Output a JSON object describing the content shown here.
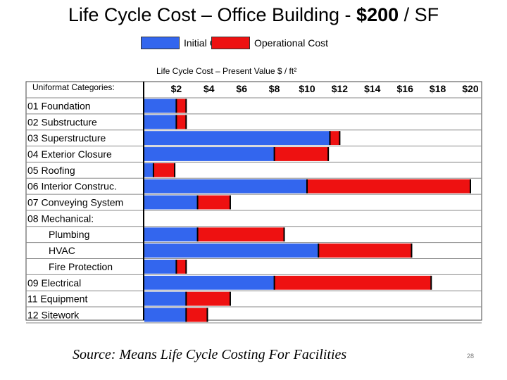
{
  "slide": {
    "title_prefix": "Life Cycle Cost – Office Building - ",
    "title_bold": "$200",
    "title_suffix": " / SF",
    "source": "Source: Means Life Cycle Costing For Facilities",
    "page_number": "28"
  },
  "chart_data": {
    "type": "bar",
    "stacked": true,
    "orientation": "horizontal",
    "title": "Life Cycle Cost – Present Value $ / ft²",
    "axis_header": "Uniformat Categories:",
    "xlim": [
      0,
      21
    ],
    "ticks": [
      2,
      4,
      6,
      8,
      10,
      12,
      14,
      16,
      18,
      20
    ],
    "tick_labels": [
      "$2",
      "$4",
      "$6",
      "$8",
      "$10",
      "$12",
      "$14",
      "$16",
      "$18",
      "$20"
    ],
    "categories": [
      {
        "label": "01 Foundation",
        "indent": false
      },
      {
        "label": "02 Substructure",
        "indent": false
      },
      {
        "label": "03 Superstructure",
        "indent": false
      },
      {
        "label": "04 Exterior Closure",
        "indent": false
      },
      {
        "label": "05 Roofing",
        "indent": false
      },
      {
        "label": "06 Interior Construc.",
        "indent": false
      },
      {
        "label": "07 Conveying System",
        "indent": false
      },
      {
        "label": "08 Mechanical:",
        "indent": false
      },
      {
        "label": "Plumbing",
        "indent": true
      },
      {
        "label": "HVAC",
        "indent": true
      },
      {
        "label": "Fire Protection",
        "indent": true
      },
      {
        "label": "09 Electrical",
        "indent": false
      },
      {
        "label": "11 Equipment",
        "indent": false
      },
      {
        "label": "12 Sitework",
        "indent": false
      }
    ],
    "series": [
      {
        "name": "Initial Cost",
        "color": "#3366ee",
        "values": [
          2.0,
          2.0,
          11.4,
          8.0,
          0.6,
          10.0,
          3.3,
          0,
          3.3,
          10.7,
          2.0,
          8.0,
          2.6,
          2.6
        ]
      },
      {
        "name": "Operational Cost",
        "color": "#ee1111",
        "values": [
          0.6,
          0.6,
          0.6,
          3.3,
          1.3,
          10.0,
          2.0,
          0,
          5.3,
          5.7,
          0.6,
          9.6,
          2.7,
          1.3
        ]
      }
    ]
  }
}
